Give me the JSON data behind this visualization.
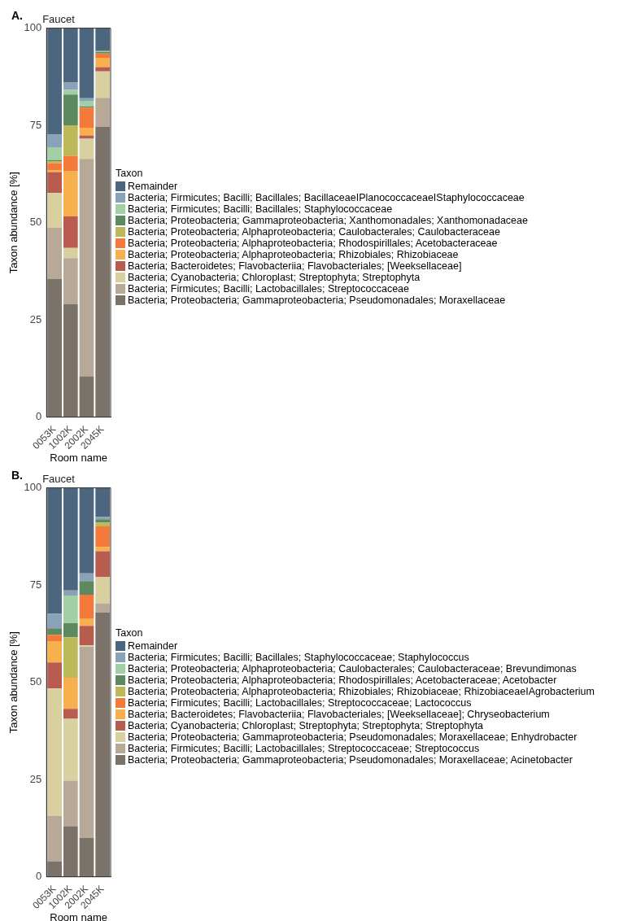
{
  "chart_data": [
    {
      "type": "bar",
      "title": "Faucet",
      "xlabel": "Room name",
      "ylabel": "Taxon abundance [%]",
      "legend_title": "Taxon",
      "annotations": [
        "A."
      ],
      "stacked": true,
      "legend": "right",
      "grid": false,
      "categories": [
        "0053K",
        "1002K",
        "2002K",
        "2045K"
      ],
      "ylim": [
        0,
        100
      ],
      "yticks": [
        0,
        25,
        50,
        75,
        100
      ],
      "series": [
        {
          "name": "Bacteria; Proteobacteria; Gammaproteobacteria; Pseudomonadales; Moraxellaceae",
          "color": "#7b726a",
          "values": [
            35.5,
            29.0,
            10.5,
            74.6
          ]
        },
        {
          "name": "Bacteria; Firmicutes; Bacilli; Lactobacillales; Streptococcaceae",
          "color": "#b8a898",
          "values": [
            13.2,
            11.9,
            55.9,
            7.5
          ]
        },
        {
          "name": "Bacteria; Cyanobacteria; Chloroplast; Streptophyta; Streptophyta",
          "color": "#d9d0a0",
          "values": [
            8.9,
            2.6,
            5.2,
            6.8
          ]
        },
        {
          "name": "Bacteria; Bacteroidetes; Flavobacteriia; Flavobacteriales; [Weeksellaceae]",
          "color": "#b85c4f",
          "values": [
            5.4,
            8.1,
            0.8,
            1.1
          ]
        },
        {
          "name": "Bacteria; Proteobacteria; Alphaproteobacteria; Rhizobiales; Rhizobiaceae",
          "color": "#f8b04e",
          "values": [
            0.5,
            11.7,
            2.0,
            2.4
          ]
        },
        {
          "name": "Bacteria; Proteobacteria; Alphaproteobacteria; Rhodospirillales; Acetobacteraceae",
          "color": "#f47a3c",
          "values": [
            1.8,
            3.9,
            5.2,
            1.1
          ]
        },
        {
          "name": "Bacteria; Proteobacteria; Alphaproteobacteria; Caulobacterales; Caulobacteraceae",
          "color": "#bdb85a",
          "values": [
            0.5,
            7.8,
            0,
            0
          ]
        },
        {
          "name": "Bacteria; Proteobacteria; Gammaproteobacteria; Xanthomonadales; Xanthomonadaceae",
          "color": "#5c8a5e",
          "values": [
            0.3,
            7.9,
            0.3,
            0.4
          ]
        },
        {
          "name": "Bacteria; Firmicutes; Bacilli; Bacillales; Staphylococcaceae",
          "color": "#a3cfa6",
          "values": [
            3.3,
            1.2,
            1.4,
            0.2
          ]
        },
        {
          "name": "Bacteria; Firmicutes; Bacilli; Bacillales; BacillaceaeIPlanococcaceaeIStaphylococcaceae",
          "color": "#8aa2b8",
          "values": [
            3.2,
            1.9,
            0.7,
            0
          ]
        },
        {
          "name": "Remainder",
          "color": "#4d6680",
          "values": [
            27.4,
            14.0,
            18.0,
            5.9
          ]
        }
      ]
    },
    {
      "type": "bar",
      "title": "Faucet",
      "xlabel": "Room name",
      "ylabel": "Taxon abundance [%]",
      "legend_title": "Taxon",
      "annotations": [
        "B."
      ],
      "stacked": true,
      "legend": "right",
      "grid": false,
      "categories": [
        "0053K",
        "1002K",
        "2002K",
        "2045K"
      ],
      "ylim": [
        0,
        100
      ],
      "yticks": [
        0,
        25,
        50,
        75,
        100
      ],
      "series": [
        {
          "name": "Bacteria; Proteobacteria; Gammaproteobacteria; Pseudomonadales; Moraxellaceae; Acinetobacter",
          "color": "#7b726a",
          "values": [
            3.9,
            13.0,
            10.0,
            67.9
          ]
        },
        {
          "name": "Bacteria; Firmicutes; Bacilli; Lactobacillales; Streptococcaceae; Streptococcus",
          "color": "#b8a898",
          "values": [
            11.7,
            11.7,
            49.2,
            2.4
          ]
        },
        {
          "name": "Bacteria; Proteobacteria; Gammaproteobacteria; Pseudomonadales; Moraxellaceae; Enhydrobacter",
          "color": "#d9d0a0",
          "values": [
            32.8,
            15.9,
            0.3,
            6.8
          ]
        },
        {
          "name": "Bacteria; Cyanobacteria; Chloroplast; Streptophyta; Streptophyta; Streptophyta",
          "color": "#b85c4f",
          "values": [
            6.7,
            2.6,
            5.0,
            6.6
          ]
        },
        {
          "name": "Bacteria; Bacteroidetes; Flavobacteriia; Flavobacteriales; [Weeksellaceae]; Chryseobacterium",
          "color": "#f8b04e",
          "values": [
            5.5,
            8.0,
            1.8,
            1.1
          ]
        },
        {
          "name": "Bacteria; Firmicutes; Bacilli; Lactobacillales; Streptococcaceae; Lactococcus",
          "color": "#f47a3c",
          "values": [
            1.6,
            0,
            6.2,
            5.3
          ]
        },
        {
          "name": "Bacteria; Proteobacteria; Alphaproteobacteria; Rhizobiales; Rhizobiaceae; RhizobiaceaeIAgrobacterium",
          "color": "#bdb85a",
          "values": [
            0,
            10.4,
            0,
            1.0
          ]
        },
        {
          "name": "Bacteria; Proteobacteria; Alphaproteobacteria; Rhodospirillales; Acetobacteraceae; Acetobacter",
          "color": "#5c8a5e",
          "values": [
            1.7,
            3.6,
            3.5,
            0.8
          ]
        },
        {
          "name": "Bacteria; Proteobacteria; Alphaproteobacteria; Caulobacterales; Caulobacteraceae; Brevundimonas",
          "color": "#a3cfa6",
          "values": [
            0,
            7.1,
            0,
            0
          ]
        },
        {
          "name": "Bacteria; Firmicutes; Bacilli; Bacillales; Staphylococcaceae; Staphylococcus",
          "color": "#8aa2b8",
          "values": [
            3.7,
            1.3,
            2.0,
            0.6
          ]
        },
        {
          "name": "Remainder",
          "color": "#4d6680",
          "values": [
            32.4,
            26.4,
            22.0,
            7.5
          ]
        }
      ]
    }
  ]
}
